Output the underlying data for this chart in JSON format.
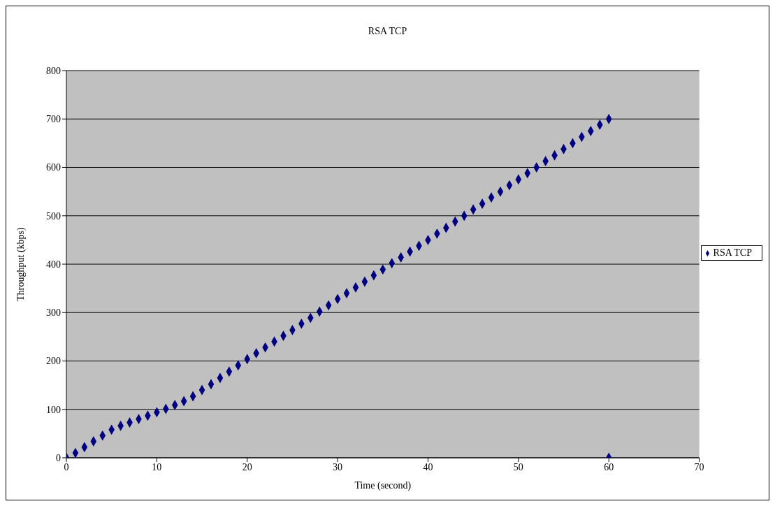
{
  "chart_data": {
    "type": "scatter",
    "title": "RSA TCP",
    "xlabel": "Time (second)",
    "ylabel": "Throughput (kbps)",
    "xlim": [
      0,
      70
    ],
    "xticks": [
      0,
      10,
      20,
      30,
      40,
      50,
      60,
      70
    ],
    "ylim": [
      0,
      800
    ],
    "yticks": [
      0,
      100,
      200,
      300,
      400,
      500,
      600,
      700,
      800
    ],
    "grid": "y",
    "legend": "right",
    "marker": "diamond",
    "series": [
      {
        "name": "RSA TCP",
        "color": "#000080",
        "x": [
          0,
          1,
          2,
          3,
          4,
          5,
          6,
          7,
          8,
          9,
          10,
          11,
          12,
          13,
          14,
          15,
          16,
          17,
          18,
          19,
          20,
          21,
          22,
          23,
          24,
          25,
          26,
          27,
          28,
          29,
          30,
          31,
          32,
          33,
          34,
          35,
          36,
          37,
          38,
          39,
          40,
          41,
          42,
          43,
          44,
          45,
          46,
          47,
          48,
          49,
          50,
          51,
          52,
          53,
          54,
          55,
          56,
          57,
          58,
          59,
          60,
          60
        ],
        "values": [
          0,
          10,
          22,
          34,
          46,
          58,
          66,
          73,
          80,
          87,
          94,
          101,
          109,
          117,
          127,
          140,
          152,
          165,
          178,
          191,
          204,
          216,
          228,
          240,
          252,
          264,
          277,
          289,
          302,
          315,
          328,
          340,
          352,
          364,
          377,
          389,
          402,
          414,
          426,
          438,
          450,
          463,
          475,
          488,
          500,
          513,
          525,
          538,
          550,
          563,
          575,
          588,
          600,
          613,
          625,
          638,
          650,
          663,
          675,
          688,
          700,
          0
        ]
      }
    ]
  }
}
